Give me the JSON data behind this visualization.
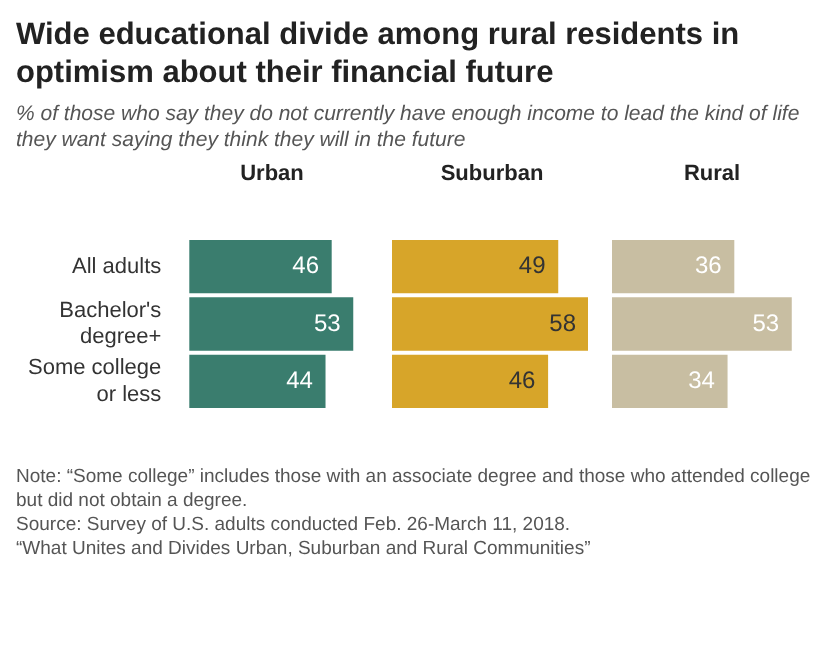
{
  "chart_data": [
    {
      "type": "bar",
      "orientation": "horizontal",
      "data_labels": true,
      "tick_labels": "y",
      "title": "Wide educational divide among rural residents in optimism about their financial future",
      "subtitle": "% of those who say they do not currently have enough income to lead the kind of life they want saying they think they will in the future",
      "annotations": [
        "Note: “Some college” includes those with an associate degree and those who attended college but did not obtain a degree.",
        "Source: Survey of U.S. adults conducted Feb. 26-March 11, 2018.",
        "“What Unites and Divides Urban, Suburban and Rural Communities”"
      ],
      "categories": [
        "All adults",
        "Bachelor's degree+",
        "Some college or less"
      ],
      "series": [
        {
          "name": "Urban",
          "color": "#3a7d6e",
          "values": [
            46,
            53,
            44
          ]
        }
      ]
    },
    {
      "type": "bar",
      "orientation": "horizontal",
      "data_labels": true,
      "tick_labels": false,
      "categories": [
        null,
        null,
        null
      ],
      "series": [
        {
          "name": "Suburban",
          "color": "#d7a529",
          "values": [
            49,
            58,
            46
          ]
        }
      ]
    },
    {
      "type": "bar",
      "orientation": "horizontal",
      "data_labels": true,
      "tick_labels": false,
      "categories": [
        null,
        null,
        null
      ],
      "series": [
        {
          "name": "Rural",
          "color": "#c8bea2",
          "values": [
            36,
            53,
            34
          ]
        }
      ]
    }
  ]
}
